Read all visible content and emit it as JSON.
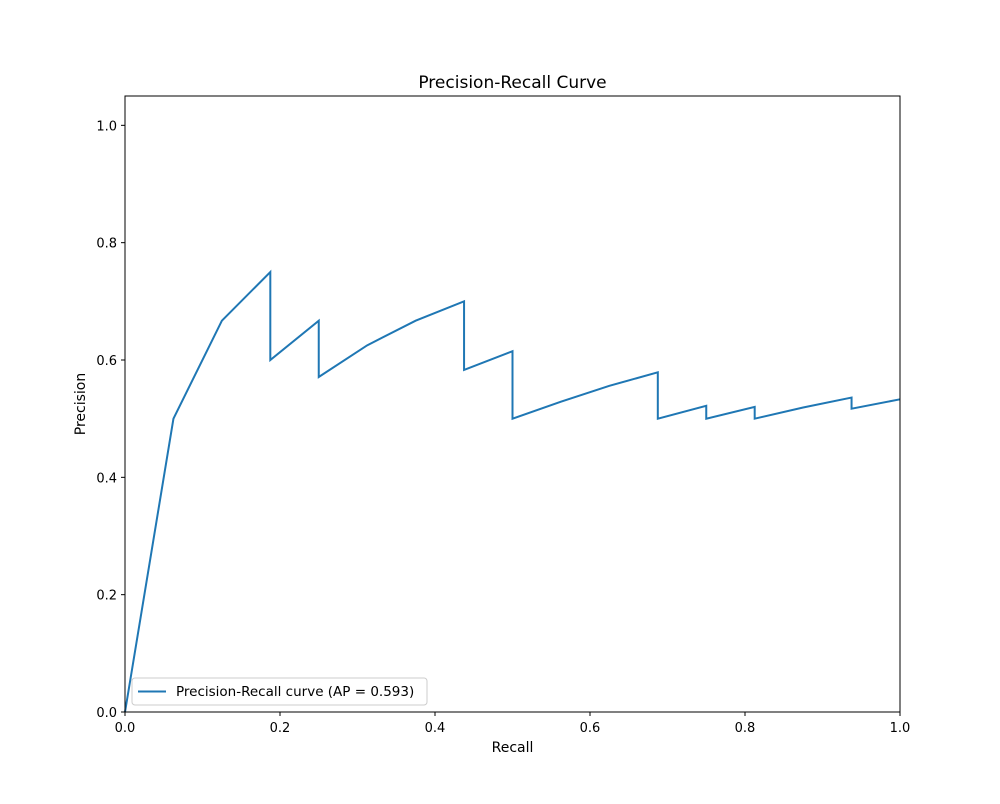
{
  "chart_data": {
    "type": "line",
    "title": "Precision-Recall Curve",
    "xlabel": "Recall",
    "ylabel": "Precision",
    "xlim": [
      0.0,
      1.0
    ],
    "ylim": [
      0.0,
      1.05
    ],
    "x_ticks": [
      0.0,
      0.2,
      0.4,
      0.6,
      0.8,
      1.0
    ],
    "x_tick_labels": [
      "0.0",
      "0.2",
      "0.4",
      "0.6",
      "0.8",
      "1.0"
    ],
    "y_ticks": [
      0.0,
      0.2,
      0.4,
      0.6,
      0.8,
      1.0
    ],
    "y_tick_labels": [
      "0.0",
      "0.2",
      "0.4",
      "0.6",
      "0.8",
      "1.0"
    ],
    "grid": false,
    "legend_position": "lower-left",
    "series": [
      {
        "name": "Precision-Recall curve (AP = 0.593)",
        "color": "#1f77b4",
        "x": [
          0.0,
          0.0625,
          0.125,
          0.1875,
          0.1875,
          0.25,
          0.25,
          0.3125,
          0.375,
          0.4375,
          0.4375,
          0.5,
          0.5,
          0.5625,
          0.625,
          0.6875,
          0.6875,
          0.75,
          0.75,
          0.8125,
          0.8125,
          0.875,
          0.9375,
          0.9375,
          1.0
        ],
        "y": [
          0.0,
          0.5,
          0.667,
          0.75,
          0.6,
          0.667,
          0.571,
          0.625,
          0.667,
          0.7,
          0.583,
          0.615,
          0.5,
          0.529,
          0.556,
          0.579,
          0.5,
          0.522,
          0.5,
          0.52,
          0.5,
          0.519,
          0.536,
          0.517,
          0.533
        ]
      }
    ]
  }
}
